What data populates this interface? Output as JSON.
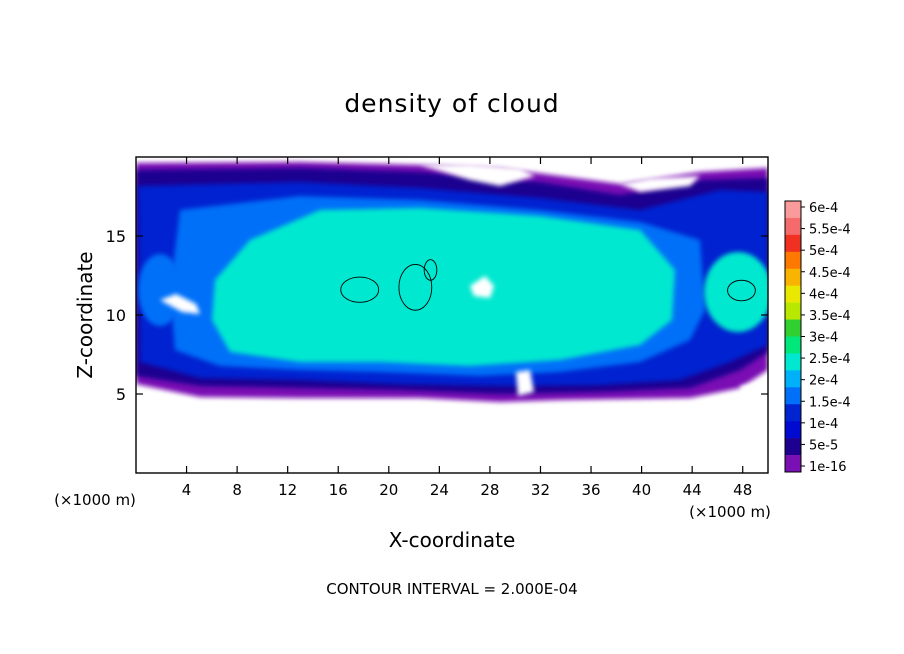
{
  "chart_data": {
    "type": "heatmap",
    "title": "density of cloud",
    "xlabel": "X-coordinate",
    "ylabel": "Z-coordinate",
    "x_unit": "(×1000 m)",
    "z_unit": "(×1000 m)",
    "xlim": [
      0,
      50
    ],
    "ylim": [
      0,
      20
    ],
    "x_ticks": [
      4,
      8,
      12,
      16,
      20,
      24,
      28,
      32,
      36,
      40,
      44,
      48
    ],
    "y_ticks": [
      5,
      10,
      15
    ],
    "footer": "CONTOUR INTERVAL = 2.000E-04",
    "colorbar": {
      "labels": [
        "6e-4",
        "5.5e-4",
        "5e-4",
        "4.5e-4",
        "4e-4",
        "3.5e-4",
        "3e-4",
        "2.5e-4",
        "2e-4",
        "1.5e-4",
        "1e-4",
        "5e-5",
        "1e-16"
      ],
      "colors": [
        "#fa9a9a",
        "#f56a6a",
        "#f03020",
        "#ff7800",
        "#f8b400",
        "#e8e800",
        "#b8e800",
        "#30d030",
        "#00e87a",
        "#00e8d0",
        "#00b0f8",
        "#0070f8",
        "#0024d0",
        "#000ad0",
        "#1e0090",
        "#7a10b4"
      ]
    },
    "regions": [
      {
        "level": "1e-16",
        "x": [
          0,
          50
        ],
        "z": [
          4.8,
          19.6
        ]
      },
      {
        "level": "5e-5",
        "x": [
          0.3,
          49.5
        ],
        "z": [
          5.2,
          19.0
        ]
      },
      {
        "level": "1e-4",
        "x": [
          1.0,
          49.0
        ],
        "z": [
          5.6,
          18.0
        ]
      },
      {
        "level": "1.5e-4",
        "x": [
          4.0,
          42.0
        ],
        "z": [
          7.0,
          17.0
        ]
      },
      {
        "level": "2e-4",
        "x": [
          8.0,
          38.0
        ],
        "z": [
          8.0,
          15.0
        ]
      }
    ],
    "contour_lines": [
      {
        "level": "2e-4",
        "x": [
          16.2,
          19.2
        ],
        "z": [
          10.8,
          12.4
        ]
      },
      {
        "level": "2e-4",
        "x": [
          20.8,
          23.4
        ],
        "z": [
          10.3,
          13.2
        ]
      },
      {
        "level": "2e-4",
        "x": [
          22.8,
          23.8
        ],
        "z": [
          12.2,
          13.5
        ]
      },
      {
        "level": "2e-4",
        "x": [
          46.8,
          49.0
        ],
        "z": [
          10.9,
          12.2
        ]
      }
    ]
  }
}
